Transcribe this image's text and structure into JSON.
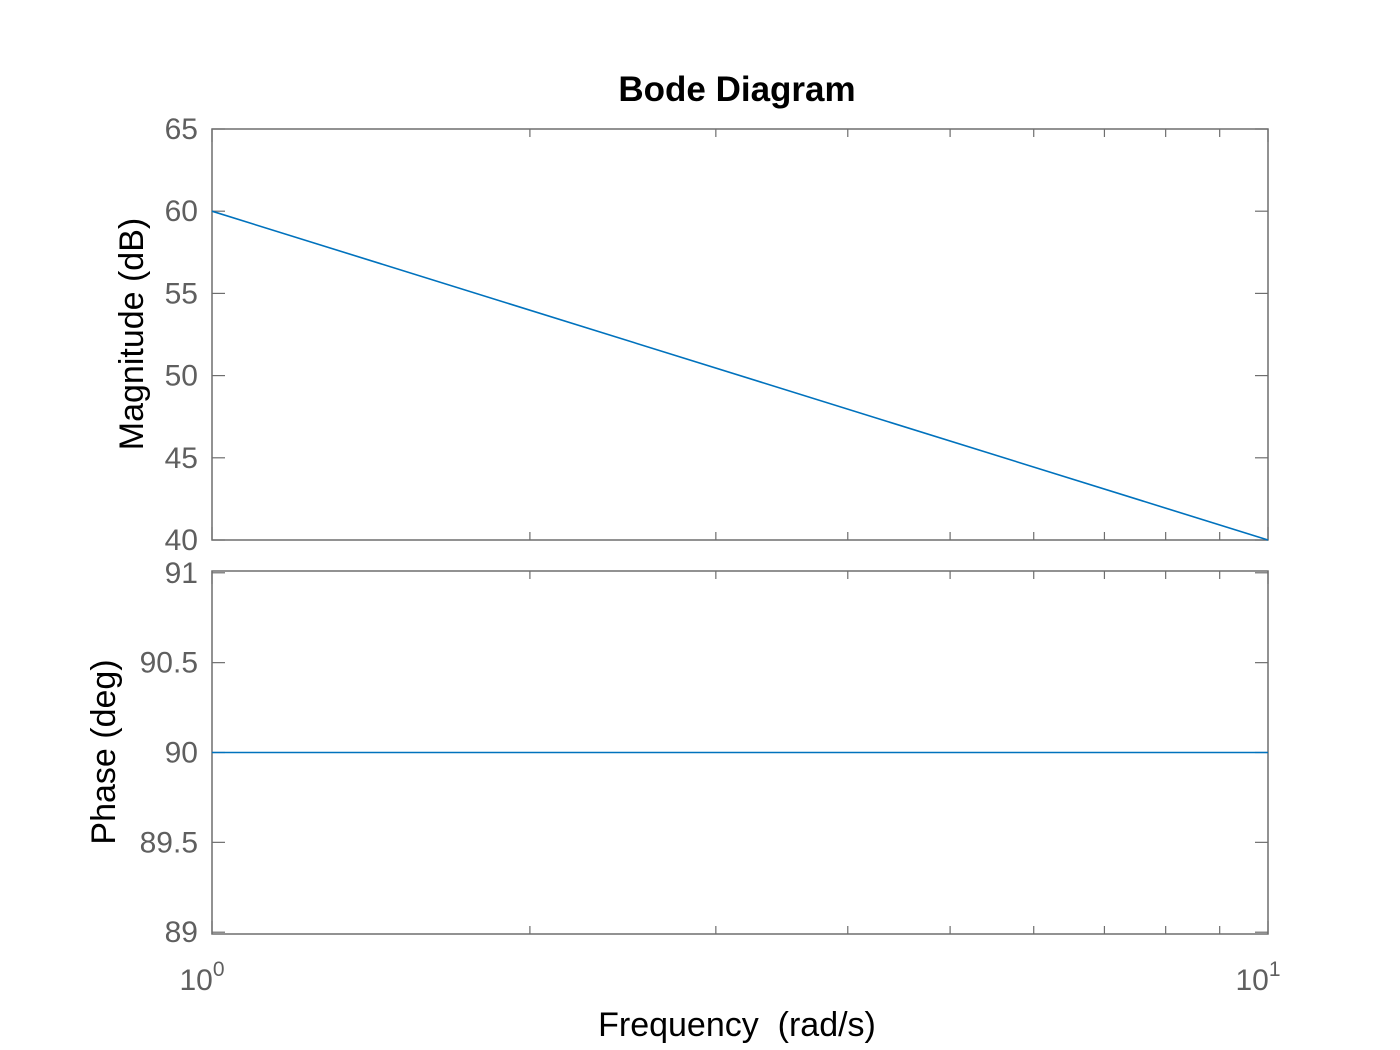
{
  "chart_data": [
    {
      "type": "line",
      "title": "Bode Diagram",
      "ylabel": "Magnitude (dB)",
      "xlabel": "Frequency  (rad/s)",
      "x_scale": "log",
      "xlim": [
        1,
        10
      ],
      "ylim": [
        40,
        65
      ],
      "yticks": [
        40,
        45,
        50,
        55,
        60,
        65
      ],
      "ytick_labels": [
        "40",
        "45",
        "50",
        "55",
        "60",
        "65"
      ],
      "xtick_labels": [
        {
          "base": "10",
          "exp": "0"
        },
        {
          "base": "10",
          "exp": "1"
        }
      ],
      "grid": false,
      "series": [
        {
          "x": [
            1,
            10
          ],
          "y": [
            60,
            40
          ],
          "color": "#0072bd"
        }
      ]
    },
    {
      "type": "line",
      "ylabel": "Phase (deg)",
      "x_scale": "log",
      "xlim": [
        1,
        10
      ],
      "ylim": [
        88.99,
        91.01
      ],
      "yticks": [
        89,
        89.5,
        90,
        90.5,
        91
      ],
      "ytick_labels": [
        "89",
        "89.5",
        "90",
        "90.5",
        "91"
      ],
      "grid": false,
      "series": [
        {
          "x": [
            1,
            10
          ],
          "y": [
            90,
            90
          ],
          "color": "#0072bd"
        }
      ]
    }
  ]
}
